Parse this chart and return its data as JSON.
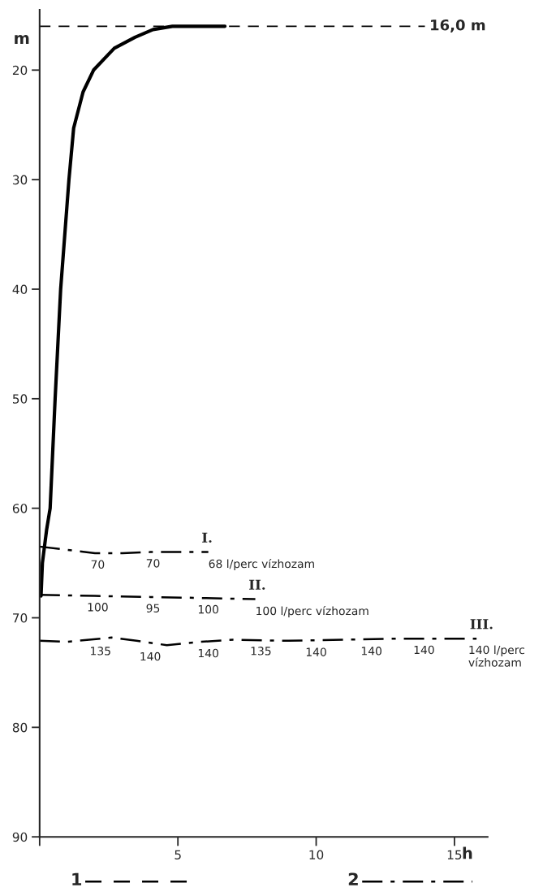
{
  "chart_data": {
    "type": "line",
    "xlabel": "h",
    "ylabel": "m",
    "xlim": [
      0,
      16.2
    ],
    "ylim": [
      90,
      14.5
    ],
    "xticks": [
      {
        "value": 0,
        "label": null
      },
      5,
      10,
      15
    ],
    "yticks": [
      20,
      30,
      40,
      50,
      60,
      70,
      80,
      90
    ],
    "grid": false,
    "series": [
      {
        "x": [
          0.05,
          0.1,
          0.25,
          0.38,
          0.56,
          0.76,
          1.06,
          1.23,
          1.57,
          1.95,
          2.7,
          3.45,
          4.1,
          4.8,
          6.7
        ],
        "values": [
          68,
          65,
          62,
          60,
          50,
          40,
          30,
          25.3,
          22,
          20,
          18,
          17,
          16.3,
          16.0,
          16.0
        ],
        "color": "#000000",
        "line_style": "solid"
      },
      {
        "name": "I.",
        "x": [
          0,
          1,
          2,
          3,
          4,
          5,
          6.1
        ],
        "values": [
          63.5,
          63.8,
          64.1,
          64.1,
          64.0,
          64.0,
          64.0
        ],
        "color": "#000000",
        "line_style": "dashdot"
      },
      {
        "name": "II.",
        "x": [
          0,
          2,
          4,
          6,
          7.8
        ],
        "values": [
          67.9,
          68.0,
          68.1,
          68.2,
          68.3
        ],
        "color": "#000000",
        "line_style": "dashdot"
      },
      {
        "name": "III.",
        "x": [
          0,
          1,
          2.6,
          3.5,
          4.6,
          5.8,
          7,
          9,
          11,
          13,
          15.8
        ],
        "values": [
          72.1,
          72.2,
          71.8,
          72.1,
          72.5,
          72.2,
          72.0,
          72.1,
          72.0,
          71.9,
          71.9
        ],
        "color": "#000000",
        "line_style": "dashdot"
      }
    ],
    "ref_lines": [
      {
        "axis": "y",
        "value": 16.0,
        "label": "16,0 m",
        "line_style": "dashed",
        "color": "#000000"
      }
    ],
    "annotations": [
      {
        "text": "70",
        "x": 2.1,
        "y": 64.1
      },
      {
        "text": "70",
        "x": 4.1,
        "y": 64.0
      },
      {
        "text": "68 l/perc vízhozam",
        "x": 6.1,
        "y": 64.0
      },
      {
        "text": "100",
        "x": 2.1,
        "y": 68.0
      },
      {
        "text": "95",
        "x": 4.1,
        "y": 68.1
      },
      {
        "text": "100",
        "x": 6.1,
        "y": 68.2
      },
      {
        "text": "100 l/perc vízhozam",
        "x": 7.8,
        "y": 68.3
      },
      {
        "text": "135",
        "x": 2.2,
        "y": 72.0
      },
      {
        "text": "140",
        "x": 4.0,
        "y": 72.5
      },
      {
        "text": "140",
        "x": 6.1,
        "y": 72.2
      },
      {
        "text": "135",
        "x": 8.0,
        "y": 72.0
      },
      {
        "text": "140",
        "x": 10.0,
        "y": 72.1
      },
      {
        "text": "140",
        "x": 12.0,
        "y": 72.0
      },
      {
        "text": "140",
        "x": 13.9,
        "y": 71.9
      },
      {
        "text": "140 l/perc\nvízhozam",
        "x": 15.5,
        "y": 71.9
      },
      "1",
      "2"
    ]
  }
}
